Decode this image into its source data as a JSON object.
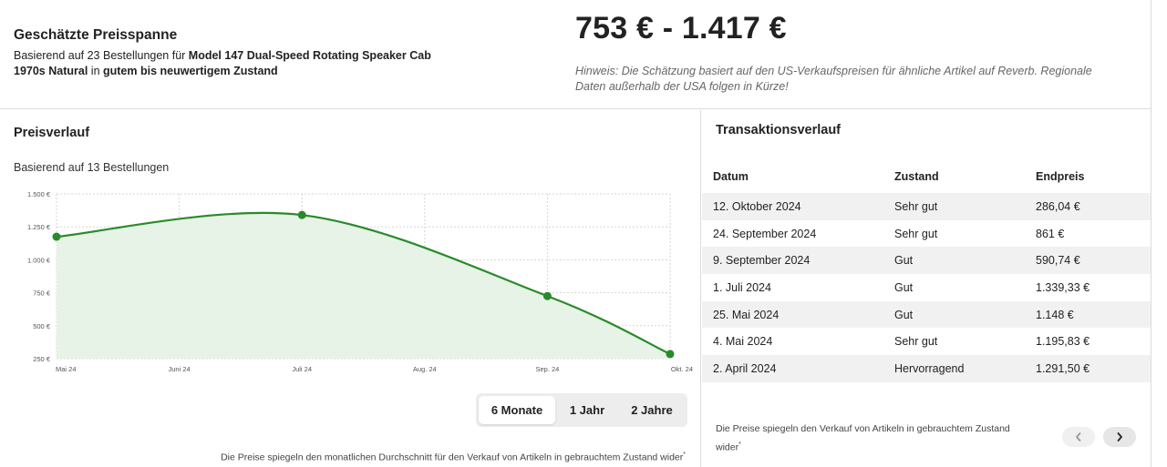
{
  "estimate": {
    "title": "Geschätzte Preisspanne",
    "desc_prefix": "Basierend auf 23 Bestellungen für ",
    "product": "Model 147 Dual-Speed Rotating Speaker Cab 1970s Natural",
    "desc_mid": " in ",
    "condition": "gutem bis neuwertigem Zustand",
    "price_range": "753 € - 1.417 €",
    "note": "Hinweis: Die Schätzung basiert auf den US-Verkaufspreisen für ähnliche Artikel auf Reverb. Regionale Daten außerhalb der USA folgen in Kürze!"
  },
  "price_history": {
    "title": "Preisverlauf",
    "subtitle": "Basierend auf 13 Bestellungen",
    "ranges": [
      "6 Monate",
      "1 Jahr",
      "2 Jahre"
    ],
    "active_range": "6 Monate",
    "footnote": "Die Preise spiegeln den monatlichen Durchschnitt für den Verkauf von Artikeln in gebrauchtem Zustand wider",
    "footnote_mark": "*"
  },
  "chart_data": {
    "type": "area",
    "x": [
      "Mai 24",
      "Juni 24",
      "Juli 24",
      "Aug. 24",
      "Sep. 24",
      "Okt. 24"
    ],
    "points": [
      {
        "x": "Mai 24",
        "y": 1175
      },
      {
        "x": "Juli 24",
        "y": 1340
      },
      {
        "x": "Sep. 24",
        "y": 725
      },
      {
        "x": "Okt. 24",
        "y": 285
      }
    ],
    "yticks": [
      "1.500 €",
      "1.250 €",
      "1.000 €",
      "750 €",
      "500 €",
      "250 €"
    ],
    "ytick_values": [
      1500,
      1250,
      1000,
      750,
      500,
      250
    ],
    "ylim": [
      250,
      1500
    ],
    "grid": true,
    "line_color": "#2a8a2a",
    "fill_color": "#e6f3e6"
  },
  "transactions": {
    "title": "Transaktionsverlauf",
    "columns": [
      "Datum",
      "Zustand",
      "Endpreis"
    ],
    "rows": [
      [
        "12. Oktober 2024",
        "Sehr gut",
        "286,04 €"
      ],
      [
        "24. September 2024",
        "Sehr gut",
        "861 €"
      ],
      [
        "9. September 2024",
        "Gut",
        "590,74 €"
      ],
      [
        "1. Juli 2024",
        "Gut",
        "1.339,33 €"
      ],
      [
        "25. Mai 2024",
        "Gut",
        "1.148 €"
      ],
      [
        "4. Mai 2024",
        "Sehr gut",
        "1.195,83 €"
      ],
      [
        "2. April 2024",
        "Hervorragend",
        "1.291,50 €"
      ]
    ],
    "footnote": "Die Preise spiegeln den Verkauf von Artikeln in gebrauchtem Zustand wider",
    "footnote_mark": "*",
    "icons": {
      "prev": "chevron-left-icon",
      "next": "chevron-right-icon"
    }
  }
}
